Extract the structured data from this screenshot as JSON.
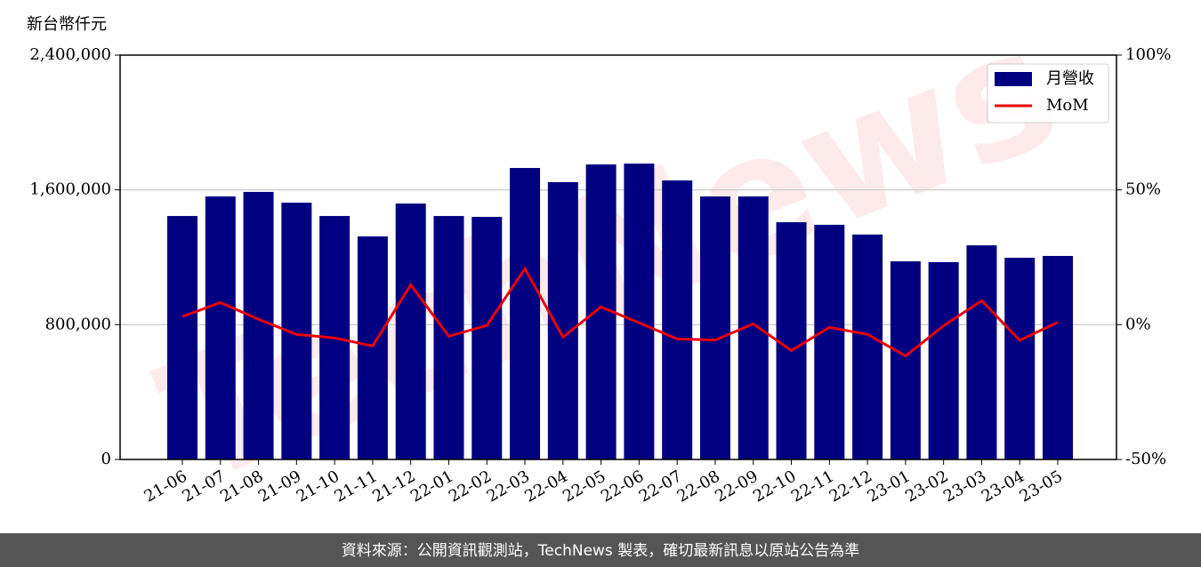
{
  "chart_data": {
    "type": "bar-line",
    "y_axis_label": "新台幣仟元",
    "watermark": "TechNews",
    "footer": "資料來源：公開資訊觀測站，TechNews 製表，確切最新訊息以原站公告為準",
    "categories": [
      "21-06",
      "21-07",
      "21-08",
      "21-09",
      "21-10",
      "21-11",
      "21-12",
      "22-01",
      "22-02",
      "22-03",
      "22-04",
      "22-05",
      "22-06",
      "22-07",
      "22-08",
      "22-09",
      "22-10",
      "22-11",
      "22-12",
      "23-01",
      "23-02",
      "23-03",
      "23-04",
      "23-05"
    ],
    "series": [
      {
        "name": "月營收",
        "type": "bar",
        "color": "#000080",
        "values": [
          1445000,
          1561000,
          1588000,
          1524000,
          1445000,
          1324000,
          1519000,
          1445000,
          1440000,
          1730000,
          1646000,
          1751000,
          1756000,
          1656000,
          1561000,
          1561000,
          1408000,
          1393000,
          1335000,
          1176000,
          1171000,
          1271000,
          1197000,
          1208000
        ]
      },
      {
        "name": "MoM",
        "type": "line",
        "axis": "y2",
        "color": "#e8000b",
        "values": [
          3.0,
          8.2,
          2.0,
          -3.6,
          -4.9,
          -7.9,
          14.8,
          -4.3,
          -0.3,
          20.8,
          -4.6,
          6.6,
          0.7,
          -5.3,
          -5.7,
          0.3,
          -9.6,
          -1.0,
          -3.6,
          -11.6,
          -0.4,
          8.9,
          -5.8,
          0.9
        ]
      }
    ],
    "ylim": [
      0,
      2400000
    ],
    "yticks": [
      {
        "value": 0,
        "label": "0"
      },
      {
        "value": 800000,
        "label": "800,000"
      },
      {
        "value": 1600000,
        "label": "1,600,000"
      },
      {
        "value": 2400000,
        "label": "2,400,000"
      }
    ],
    "y2lim": [
      -50,
      100
    ],
    "y2ticks": [
      {
        "value": -50,
        "label": "-50%"
      },
      {
        "value": 0,
        "label": "0%"
      },
      {
        "value": 50,
        "label": "50%"
      },
      {
        "value": 100,
        "label": "100%"
      }
    ],
    "grid": true,
    "legend": "upper right"
  }
}
